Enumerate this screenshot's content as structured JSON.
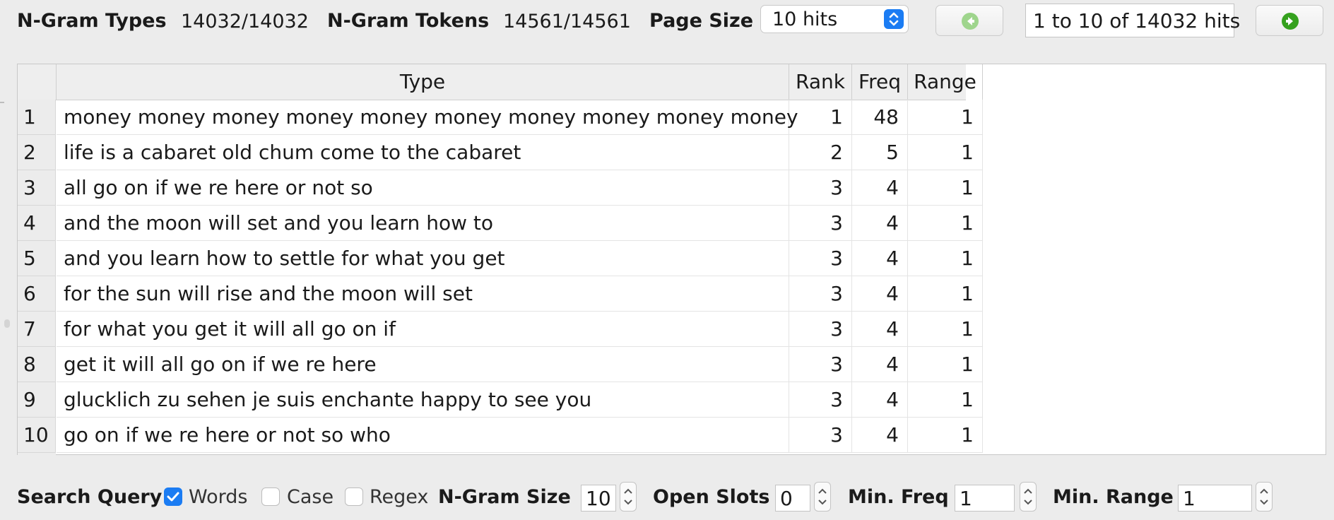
{
  "toolbar": {
    "ngram_types_label": "N-Gram Types",
    "ngram_types_value": "14032/14032",
    "ngram_tokens_label": "N-Gram Tokens",
    "ngram_tokens_value": "14561/14561",
    "page_size_label": "Page Size",
    "page_size_value": "10 hits",
    "hits_range": "1 to 10 of 14032 hits",
    "prev_icon": "arrow-left-circle-icon",
    "next_icon": "arrow-right-circle-icon",
    "accent_color": "#1b7cf3",
    "prev_icon_color": "#9fd58d",
    "next_icon_color": "#35a11e"
  },
  "table": {
    "columns": [
      "Type",
      "Rank",
      "Freq",
      "Range"
    ],
    "rows": [
      {
        "num": "1",
        "type": "money money money money money money money money money money",
        "rank": "1",
        "freq": "48",
        "range": "1"
      },
      {
        "num": "2",
        "type": "life is a cabaret old chum come to the cabaret",
        "rank": "2",
        "freq": "5",
        "range": "1"
      },
      {
        "num": "3",
        "type": "all go on if we re here or not so",
        "rank": "3",
        "freq": "4",
        "range": "1"
      },
      {
        "num": "4",
        "type": "and the moon will set and you learn how to",
        "rank": "3",
        "freq": "4",
        "range": "1"
      },
      {
        "num": "5",
        "type": "and you learn how to settle for what you get",
        "rank": "3",
        "freq": "4",
        "range": "1"
      },
      {
        "num": "6",
        "type": "for the sun will rise and the moon will set",
        "rank": "3",
        "freq": "4",
        "range": "1"
      },
      {
        "num": "7",
        "type": "for what you get it will all go on if",
        "rank": "3",
        "freq": "4",
        "range": "1"
      },
      {
        "num": "8",
        "type": "get it will all go on if we re here",
        "rank": "3",
        "freq": "4",
        "range": "1"
      },
      {
        "num": "9",
        "type": "glucklich zu sehen je suis enchante happy to see you",
        "rank": "3",
        "freq": "4",
        "range": "1"
      },
      {
        "num": "10",
        "type": "go on if we re here or not so who",
        "rank": "3",
        "freq": "4",
        "range": "1"
      }
    ]
  },
  "search": {
    "search_query_label": "Search Query",
    "words_label": "Words",
    "words_checked": true,
    "case_label": "Case",
    "case_checked": false,
    "regex_label": "Regex",
    "regex_checked": false,
    "ngram_size_label": "N-Gram Size",
    "ngram_size_value": "10",
    "open_slots_label": "Open Slots",
    "open_slots_value": "0",
    "min_freq_label": "Min. Freq",
    "min_freq_value": "1",
    "min_range_label": "Min. Range",
    "min_range_value": "1"
  }
}
